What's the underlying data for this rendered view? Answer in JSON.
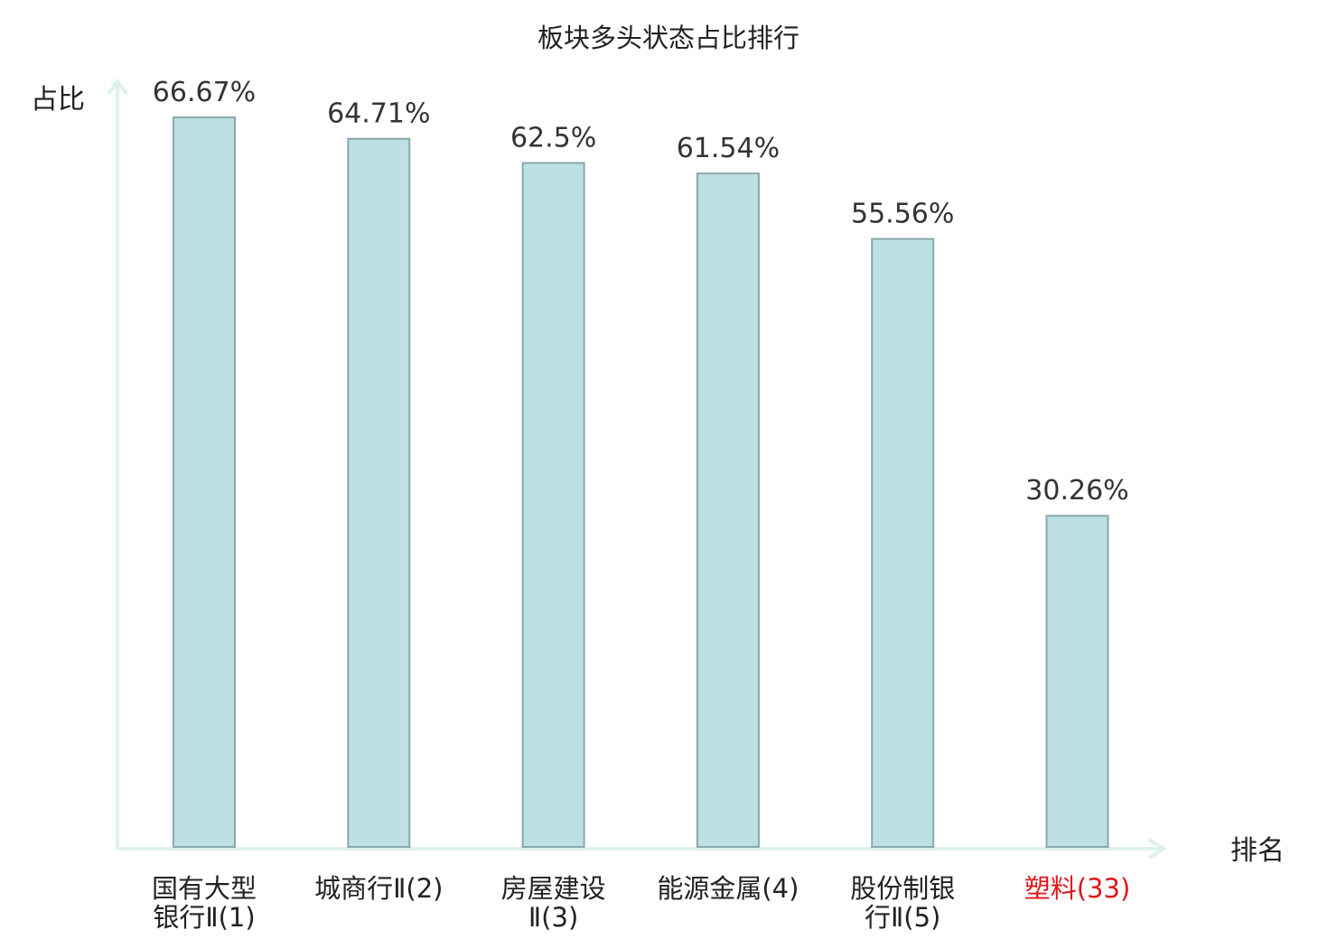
{
  "chart_data": {
    "type": "bar",
    "title": "板块多头状态占比排行",
    "ylabel": "占比",
    "xlabel": "排名",
    "ylim": [
      0,
      70
    ],
    "grid": false,
    "legend": "none",
    "categories": [
      [
        "国有大型",
        "银行Ⅱ(1)"
      ],
      [
        "城商行Ⅱ(2)"
      ],
      [
        "房屋建设",
        "Ⅱ(3)"
      ],
      [
        "能源金属(4)"
      ],
      [
        "股份制银",
        "行Ⅱ(5)"
      ],
      [
        "塑料(33)"
      ]
    ],
    "values": [
      66.67,
      64.71,
      62.5,
      61.54,
      55.56,
      30.26
    ],
    "value_labels": [
      "66.67%",
      "64.71%",
      "62.5%",
      "61.54%",
      "55.56%",
      "30.26%"
    ],
    "category_colors": [
      "#222222",
      "#222222",
      "#222222",
      "#222222",
      "#222222",
      "#e0161b"
    ]
  },
  "colors": {
    "bar_fill": "#bce0e3",
    "bar_stroke": "#8aa8aa",
    "axis": "#dff1ef",
    "highlight": "#e0161b",
    "text": "#222222"
  }
}
